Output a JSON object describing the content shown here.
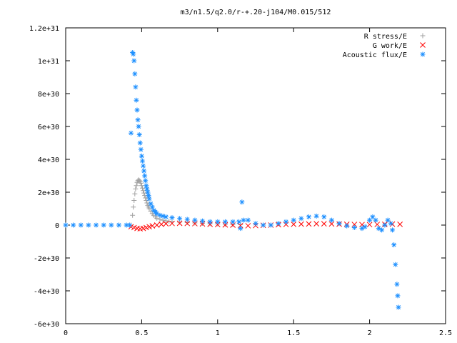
{
  "chart_data": {
    "type": "scatter",
    "title": "m3/n1.5/q2.0/r-+.20-j104/M0.015/512",
    "xlabel": "",
    "ylabel": "",
    "xlim": [
      0,
      2.5
    ],
    "ylim": [
      -6e+30,
      1.2e+31
    ],
    "x_ticks": [
      {
        "value": 0,
        "label": "0"
      },
      {
        "value": 0.5,
        "label": "0.5"
      },
      {
        "value": 1,
        "label": "1"
      },
      {
        "value": 1.5,
        "label": "1.5"
      },
      {
        "value": 2,
        "label": "2"
      },
      {
        "value": 2.5,
        "label": "2.5"
      }
    ],
    "y_ticks": [
      {
        "value": -6e+30,
        "label": "-6e+30"
      },
      {
        "value": -4e+30,
        "label": "-4e+30"
      },
      {
        "value": -2e+30,
        "label": "-2e+30"
      },
      {
        "value": 0,
        "label": "0"
      },
      {
        "value": 2e+30,
        "label": "2e+30"
      },
      {
        "value": 4e+30,
        "label": "4e+30"
      },
      {
        "value": 6e+30,
        "label": "6e+30"
      },
      {
        "value": 8e+30,
        "label": "8e+30"
      },
      {
        "value": 1e+31,
        "label": "1e+31"
      },
      {
        "value": 1.2e+31,
        "label": "1.2e+31"
      }
    ],
    "grid": false,
    "legend_position": "top-right",
    "series": [
      {
        "name": "R stress/E",
        "marker": "plus",
        "color": "#a0a0a0",
        "points": [
          [
            0.43,
            0
          ],
          [
            0.44,
            6e+29
          ],
          [
            0.445,
            1.1e+30
          ],
          [
            0.45,
            1.5e+30
          ],
          [
            0.455,
            1.9e+30
          ],
          [
            0.46,
            2.2e+30
          ],
          [
            0.465,
            2.4e+30
          ],
          [
            0.47,
            2.6e+30
          ],
          [
            0.475,
            2.7e+30
          ],
          [
            0.48,
            2.75e+30
          ],
          [
            0.485,
            2.7e+30
          ],
          [
            0.49,
            2.65e+30
          ],
          [
            0.495,
            2.55e+30
          ],
          [
            0.5,
            2.4e+30
          ],
          [
            0.505,
            2.25e+30
          ],
          [
            0.51,
            2.1e+30
          ],
          [
            0.515,
            1.95e+30
          ],
          [
            0.52,
            1.8e+30
          ],
          [
            0.525,
            1.65e+30
          ],
          [
            0.53,
            1.5e+30
          ],
          [
            0.535,
            1.35e+30
          ],
          [
            0.54,
            1.2e+30
          ],
          [
            0.545,
            1.1e+30
          ],
          [
            0.55,
            1e+30
          ],
          [
            0.56,
            8.5e+29
          ],
          [
            0.57,
            7e+29
          ],
          [
            0.58,
            6e+29
          ],
          [
            0.59,
            5e+29
          ],
          [
            0.6,
            4.2e+29
          ],
          [
            0.62,
            3.5e+29
          ],
          [
            0.64,
            3e+29
          ],
          [
            0.66,
            2.6e+29
          ],
          [
            0.68,
            2.3e+29
          ],
          [
            0.7,
            2.1e+29
          ],
          [
            0.75,
            1.8e+29
          ],
          [
            0.8,
            1.5e+29
          ],
          [
            0.85,
            1.3e+29
          ],
          [
            0.9,
            1.1e+29
          ],
          [
            0.95,
            9e+28
          ],
          [
            1.0,
            7e+28
          ],
          [
            1.05,
            5e+28
          ],
          [
            1.1,
            3e+28
          ],
          [
            1.15,
            2e+28
          ]
        ]
      },
      {
        "name": "G work/E",
        "marker": "cross",
        "color": "#ff0000",
        "points": [
          [
            0.43,
            -1e+29
          ],
          [
            0.45,
            -1.5e+29
          ],
          [
            0.47,
            -2e+29
          ],
          [
            0.49,
            -2.2e+29
          ],
          [
            0.51,
            -2e+29
          ],
          [
            0.53,
            -1.5e+29
          ],
          [
            0.55,
            -1e+29
          ],
          [
            0.57,
            -5e+28
          ],
          [
            0.6,
            0
          ],
          [
            0.63,
            5e+28
          ],
          [
            0.66,
            8e+28
          ],
          [
            0.7,
            1e+29
          ],
          [
            0.75,
            1.1e+29
          ],
          [
            0.8,
            1e+29
          ],
          [
            0.85,
            9e+28
          ],
          [
            0.9,
            7e+28
          ],
          [
            0.95,
            5e+28
          ],
          [
            1.0,
            3e+28
          ],
          [
            1.05,
            1e+28
          ],
          [
            1.1,
            0
          ],
          [
            1.15,
            -3e+28
          ],
          [
            1.2,
            -4e+28
          ],
          [
            1.25,
            -3e+28
          ],
          [
            1.3,
            -1e+28
          ],
          [
            1.35,
            0
          ],
          [
            1.4,
            2e+28
          ],
          [
            1.45,
            4e+28
          ],
          [
            1.5,
            5e+28
          ],
          [
            1.55,
            6e+28
          ],
          [
            1.6,
            7e+28
          ],
          [
            1.65,
            8e+28
          ],
          [
            1.7,
            8e+28
          ],
          [
            1.75,
            7e+28
          ],
          [
            1.8,
            6e+28
          ],
          [
            1.85,
            5e+28
          ],
          [
            1.9,
            4e+28
          ],
          [
            1.95,
            3e+28
          ],
          [
            2.0,
            3e+28
          ],
          [
            2.05,
            4e+28
          ],
          [
            2.1,
            5e+28
          ],
          [
            2.15,
            6e+28
          ],
          [
            2.2,
            5e+28
          ]
        ]
      },
      {
        "name": "Acoustic flux/E",
        "marker": "star",
        "color": "#1e90ff",
        "points": [
          [
            0.0,
            0
          ],
          [
            0.05,
            0
          ],
          [
            0.1,
            0
          ],
          [
            0.15,
            0
          ],
          [
            0.2,
            0
          ],
          [
            0.25,
            0
          ],
          [
            0.3,
            0
          ],
          [
            0.35,
            0
          ],
          [
            0.4,
            0
          ],
          [
            0.42,
            0
          ],
          [
            0.43,
            5.6e+30
          ],
          [
            0.44,
            1.05e+31
          ],
          [
            0.445,
            1.04e+31
          ],
          [
            0.45,
            1e+31
          ],
          [
            0.455,
            9.2e+30
          ],
          [
            0.46,
            8.4e+30
          ],
          [
            0.465,
            7.6e+30
          ],
          [
            0.47,
            7e+30
          ],
          [
            0.475,
            6.4e+30
          ],
          [
            0.48,
            6e+30
          ],
          [
            0.485,
            5.5e+30
          ],
          [
            0.49,
            5e+30
          ],
          [
            0.495,
            4.6e+30
          ],
          [
            0.5,
            4.2e+30
          ],
          [
            0.505,
            3.9e+30
          ],
          [
            0.51,
            3.6e+30
          ],
          [
            0.515,
            3.3e+30
          ],
          [
            0.52,
            3e+30
          ],
          [
            0.525,
            2.7e+30
          ],
          [
            0.53,
            2.4e+30
          ],
          [
            0.535,
            2.2e+30
          ],
          [
            0.54,
            2e+30
          ],
          [
            0.545,
            1.8e+30
          ],
          [
            0.55,
            1.6e+30
          ],
          [
            0.56,
            1.3e+30
          ],
          [
            0.57,
            1.1e+30
          ],
          [
            0.58,
            9e+29
          ],
          [
            0.59,
            8e+29
          ],
          [
            0.6,
            7e+29
          ],
          [
            0.62,
            6e+29
          ],
          [
            0.64,
            5.5e+29
          ],
          [
            0.66,
            5e+29
          ],
          [
            0.7,
            4.5e+29
          ],
          [
            0.75,
            4e+29
          ],
          [
            0.8,
            3.5e+29
          ],
          [
            0.85,
            3e+29
          ],
          [
            0.9,
            2.5e+29
          ],
          [
            0.95,
            2e+29
          ],
          [
            1.0,
            2e+29
          ],
          [
            1.05,
            2e+29
          ],
          [
            1.1,
            2e+29
          ],
          [
            1.14,
            2e+29
          ],
          [
            1.15,
            -2e+29
          ],
          [
            1.16,
            1.4e+30
          ],
          [
            1.17,
            3e+29
          ],
          [
            1.2,
            3e+29
          ],
          [
            1.25,
            1e+29
          ],
          [
            1.3,
            0
          ],
          [
            1.35,
            0
          ],
          [
            1.4,
            1e+29
          ],
          [
            1.45,
            2e+29
          ],
          [
            1.5,
            3e+29
          ],
          [
            1.55,
            4e+29
          ],
          [
            1.6,
            5e+29
          ],
          [
            1.65,
            5.5e+29
          ],
          [
            1.7,
            5e+29
          ],
          [
            1.75,
            3e+29
          ],
          [
            1.8,
            1e+29
          ],
          [
            1.85,
            -5e+28
          ],
          [
            1.9,
            -1.5e+29
          ],
          [
            1.95,
            -2e+29
          ],
          [
            1.97,
            -1e+29
          ],
          [
            2.0,
            3e+29
          ],
          [
            2.02,
            5e+29
          ],
          [
            2.04,
            3e+29
          ],
          [
            2.06,
            -2e+29
          ],
          [
            2.08,
            -3e+29
          ],
          [
            2.1,
            0
          ],
          [
            2.12,
            3e+29
          ],
          [
            2.14,
            1e+29
          ],
          [
            2.15,
            -3e+29
          ],
          [
            2.16,
            -1.2e+30
          ],
          [
            2.17,
            -2.4e+30
          ],
          [
            2.18,
            -3.6e+30
          ],
          [
            2.185,
            -4.3e+30
          ],
          [
            2.19,
            -5e+30
          ]
        ]
      }
    ]
  }
}
